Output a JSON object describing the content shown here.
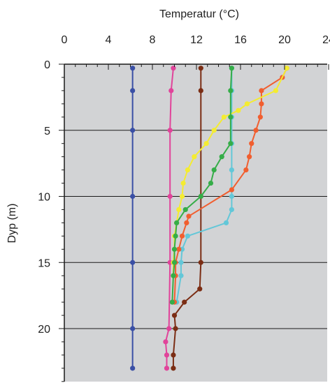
{
  "chart_data": {
    "type": "line",
    "title": "",
    "xlabel": "Temperatur (°C)",
    "ylabel": "Dyp (m)",
    "xlim": [
      0,
      24
    ],
    "ylim": [
      0,
      24
    ],
    "x_axis_position": "top",
    "y_axis_inverted": true,
    "grid": "horizontal",
    "background_color": "#d2d3d5",
    "x_ticks": [
      "0",
      "4",
      "8",
      "12",
      "16",
      "20",
      "24"
    ],
    "y_ticks": [
      "0",
      "5",
      "10",
      "15",
      "20"
    ],
    "series": [
      {
        "color": "#3a4fa5",
        "points": [
          [
            6.2,
            0.3
          ],
          [
            6.2,
            2
          ],
          [
            6.2,
            5
          ],
          [
            6.2,
            10
          ],
          [
            6.2,
            15
          ],
          [
            6.2,
            20
          ],
          [
            6.2,
            23
          ]
        ]
      },
      {
        "color": "#e1439a",
        "points": [
          [
            9.9,
            0.3
          ],
          [
            9.7,
            2
          ],
          [
            9.6,
            5
          ],
          [
            9.6,
            10
          ],
          [
            9.6,
            15
          ],
          [
            9.5,
            20
          ],
          [
            9.2,
            21
          ],
          [
            9.3,
            22
          ],
          [
            9.3,
            23
          ]
        ]
      },
      {
        "color": "#7b2d14",
        "points": [
          [
            12.4,
            0.3
          ],
          [
            12.4,
            2
          ],
          [
            12.4,
            10
          ],
          [
            12.4,
            15
          ],
          [
            12.3,
            17
          ],
          [
            10.9,
            18
          ],
          [
            10.0,
            19
          ],
          [
            10.1,
            20
          ],
          [
            9.9,
            22
          ],
          [
            9.9,
            23
          ]
        ]
      },
      {
        "color": "#63c7d8",
        "points": [
          [
            15.2,
            0.3
          ],
          [
            15.2,
            2
          ],
          [
            15.2,
            4
          ],
          [
            15.2,
            6
          ],
          [
            15.2,
            8
          ],
          [
            15.2,
            10
          ],
          [
            15.2,
            11
          ],
          [
            14.7,
            12
          ],
          [
            11.2,
            13
          ],
          [
            10.7,
            14
          ],
          [
            10.6,
            15
          ],
          [
            10.6,
            16
          ],
          [
            10.2,
            18
          ]
        ]
      },
      {
        "color": "#f15e2f",
        "points": [
          [
            20.2,
            0.3
          ],
          [
            19.8,
            1
          ],
          [
            17.9,
            2
          ],
          [
            17.9,
            3
          ],
          [
            17.8,
            4
          ],
          [
            17.4,
            5
          ],
          [
            17.0,
            6
          ],
          [
            16.8,
            7
          ],
          [
            16.5,
            8
          ],
          [
            15.2,
            9.5
          ],
          [
            11.3,
            11.5
          ],
          [
            11.1,
            12
          ],
          [
            10.7,
            13
          ],
          [
            10.4,
            14
          ],
          [
            10.1,
            15
          ],
          [
            10.1,
            16
          ],
          [
            10.0,
            18
          ]
        ]
      },
      {
        "color": "#f4ec31",
        "points": [
          [
            20.2,
            0.3
          ],
          [
            19.2,
            2
          ],
          [
            16.6,
            3
          ],
          [
            15.8,
            3.5
          ],
          [
            14.5,
            4
          ],
          [
            13.6,
            5
          ],
          [
            12.9,
            6
          ],
          [
            11.8,
            7
          ],
          [
            11.2,
            8
          ],
          [
            10.8,
            9
          ],
          [
            10.7,
            10
          ],
          [
            10.4,
            11
          ],
          [
            10.2,
            12
          ],
          [
            10.0,
            13
          ],
          [
            10.0,
            14
          ],
          [
            9.9,
            15
          ],
          [
            9.9,
            16
          ]
        ]
      },
      {
        "color": "#35ad48",
        "points": [
          [
            15.2,
            0.3
          ],
          [
            15.1,
            2
          ],
          [
            15.1,
            4
          ],
          [
            15.1,
            6
          ],
          [
            14.3,
            7
          ],
          [
            13.6,
            8
          ],
          [
            13.3,
            9
          ],
          [
            12.4,
            10
          ],
          [
            11.0,
            11
          ],
          [
            10.2,
            12
          ],
          [
            10.1,
            13
          ],
          [
            10.0,
            14
          ],
          [
            10.0,
            15
          ],
          [
            9.9,
            16
          ],
          [
            9.8,
            18
          ]
        ]
      }
    ]
  }
}
